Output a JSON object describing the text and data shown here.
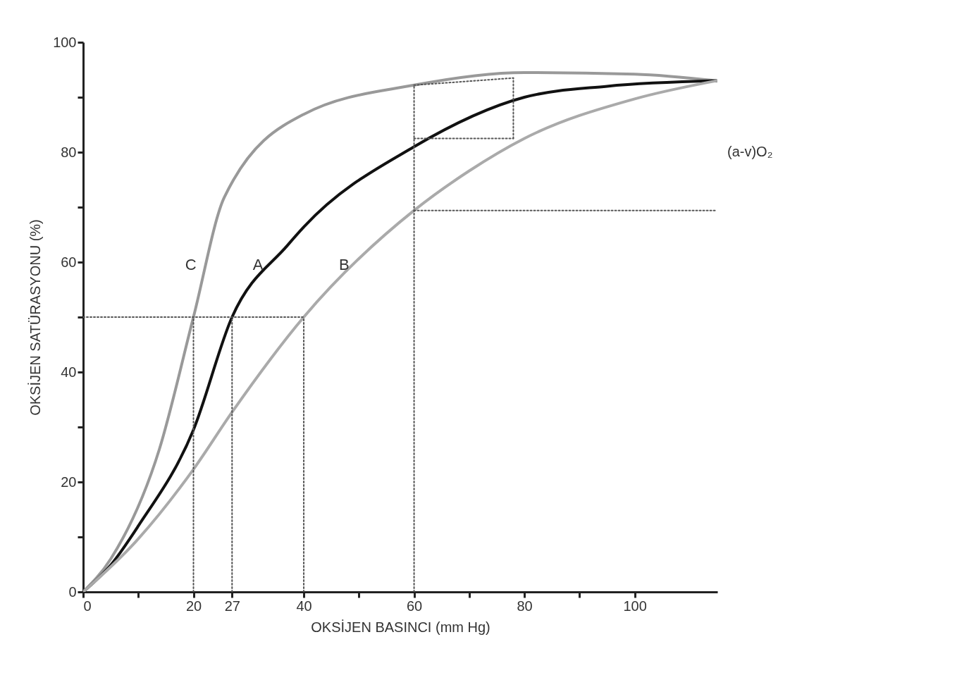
{
  "chart_data": {
    "type": "line",
    "xlabel": "OKSİJEN BASINCI (mm Hg)",
    "ylabel": "OKSİJEN SATÜRASYONU (%)",
    "xlim": [
      0,
      115
    ],
    "ylim": [
      0,
      100
    ],
    "xticks": [
      0,
      {
        "value": 10,
        "label": null
      },
      20,
      27,
      40,
      {
        "value": 50,
        "label": null
      },
      60,
      {
        "value": 70,
        "label": null
      },
      80,
      {
        "value": 90,
        "label": null
      },
      100
    ],
    "yticks": [
      0,
      {
        "value": 10,
        "label": null
      },
      20,
      {
        "value": 30,
        "label": null
      },
      40,
      {
        "value": 50,
        "label": null
      },
      60,
      {
        "value": 70,
        "label": null
      },
      80,
      {
        "value": 90,
        "label": null
      },
      100
    ],
    "grid": false,
    "marker": "none",
    "line_style": "solid",
    "series": [
      {
        "name": "C",
        "color": "#999999",
        "x": [
          0,
          5,
          13.8,
          20,
          25.6,
          40,
          60,
          80,
          100,
          114.8
        ],
        "values": [
          0,
          6,
          25.9,
          50,
          71.8,
          86.9,
          92.2,
          94.5,
          94.2,
          93
        ]
      },
      {
        "name": "A",
        "color": "#111111",
        "x": [
          0,
          5.1,
          10,
          20,
          27,
          37,
          40,
          60,
          80,
          95,
          114.8
        ],
        "values": [
          0,
          5,
          12,
          29.5,
          50,
          63,
          66.4,
          81,
          90,
          92,
          93
        ]
      },
      {
        "name": "B",
        "color": "#aaaaaa",
        "x": [
          0,
          9.4,
          20,
          27,
          40,
          60,
          70,
          80,
          100,
          114.8
        ],
        "values": [
          0,
          9,
          22.3,
          32.7,
          50,
          69.4,
          76.6,
          82.5,
          89.7,
          93
        ]
      },
      {
        "color": "#555555",
        "line_style": "dotted",
        "x": [
          0,
          40
        ],
        "values": [
          50,
          50
        ]
      },
      {
        "color": "#555555",
        "line_style": "dotted",
        "x": [
          20,
          20
        ],
        "values": [
          0,
          50
        ]
      },
      {
        "color": "#555555",
        "line_style": "dotted",
        "x": [
          27,
          27
        ],
        "values": [
          0,
          50
        ]
      },
      {
        "color": "#555555",
        "line_style": "dotted",
        "x": [
          40,
          40
        ],
        "values": [
          0,
          50
        ]
      },
      {
        "color": "#555555",
        "line_style": "dotted",
        "x": [
          60,
          60
        ],
        "values": [
          0,
          92.2
        ]
      },
      {
        "color": "#555555",
        "line_style": "dotted",
        "x": [
          60,
          114.8
        ],
        "values": [
          69.4,
          69.4
        ]
      },
      {
        "color": "#555555",
        "line_style": "dotted",
        "x": [
          60,
          78
        ],
        "values": [
          82.5,
          82.5
        ]
      },
      {
        "color": "#555555",
        "line_style": "dotted",
        "x": [
          78,
          78
        ],
        "values": [
          82.5,
          93.5
        ]
      },
      {
        "color": "#555555",
        "line_style": "dotted",
        "x": [
          60,
          78
        ],
        "values": [
          92.2,
          93.5
        ]
      }
    ],
    "annotations": [
      "(a-v)O₂"
    ]
  }
}
